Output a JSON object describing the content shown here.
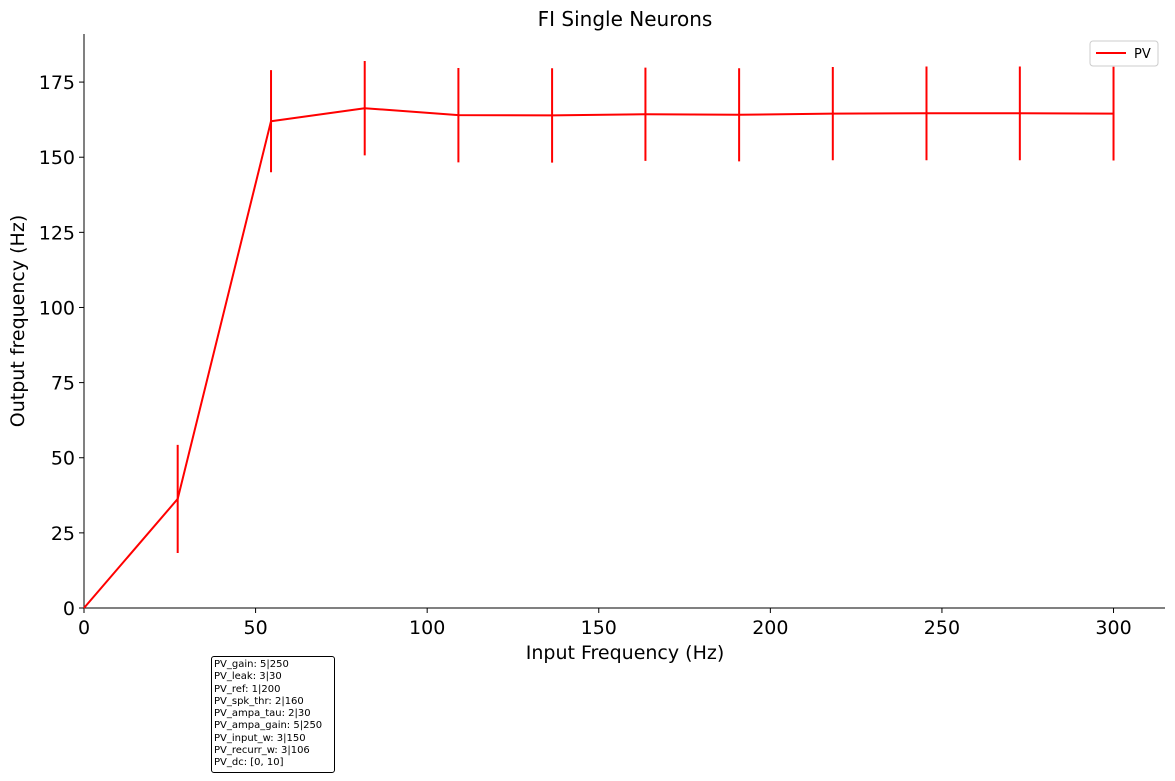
{
  "chart_data": {
    "type": "line",
    "title": "FI Single Neurons",
    "xlabel": "Input Frequency (Hz)",
    "ylabel": "Output frequency (Hz)",
    "xlim": [
      0,
      315
    ],
    "ylim": [
      0,
      191
    ],
    "xticks": [
      0,
      50,
      100,
      150,
      200,
      250,
      300
    ],
    "yticks": [
      0,
      25,
      50,
      75,
      100,
      125,
      150,
      175
    ],
    "grid": false,
    "legend": {
      "placement": "top-right",
      "entries": [
        "PV"
      ]
    },
    "series": [
      {
        "name": "PV",
        "color": "#ff0000",
        "x": [
          0,
          27.3,
          54.5,
          81.8,
          109.1,
          136.4,
          163.6,
          190.9,
          218.2,
          245.5,
          272.7,
          300
        ],
        "y": [
          0,
          36.3,
          162.0,
          166.3,
          164.0,
          163.9,
          164.3,
          164.1,
          164.5,
          164.6,
          164.6,
          164.5
        ],
        "err": [
          0,
          18.0,
          17.0,
          15.7,
          15.7,
          15.7,
          15.5,
          15.5,
          15.5,
          15.6,
          15.6,
          15.6
        ]
      }
    ]
  },
  "param_box": {
    "lines": [
      "PV_gain: 5|250",
      "PV_leak: 3|30",
      "PV_ref: 1|200",
      "PV_spk_thr: 2|160",
      "PV_ampa_tau: 2|30",
      "PV_ampa_gain: 5|250",
      "PV_input_w: 3|150",
      "PV_recurr_w: 3|106",
      "PV_dc: [0, 10]"
    ]
  }
}
